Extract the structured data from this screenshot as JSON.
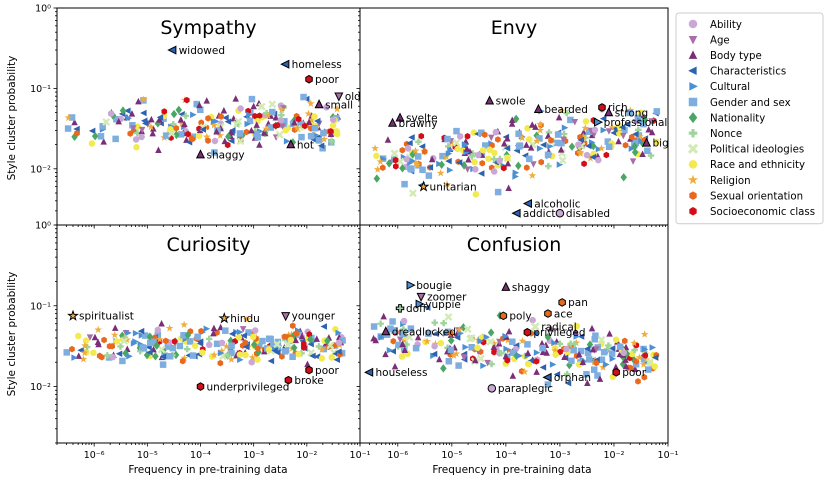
{
  "chart_data": {
    "type": "scatter",
    "ylabel": "Style cluster probability",
    "xlabel": "Frequency in pre-training data",
    "x_scale": "log",
    "y_scale": "log",
    "xlim": [
      2e-07,
      0.1
    ],
    "ylim": [
      0.002,
      1
    ],
    "x_ticks": [
      {
        "value": 1e-06,
        "label": "10⁻⁶"
      },
      {
        "value": 1e-05,
        "label": "10⁻⁵"
      },
      {
        "value": 0.0001,
        "label": "10⁻⁴"
      },
      {
        "value": 0.001,
        "label": "10⁻³"
      },
      {
        "value": 0.01,
        "label": "10⁻²"
      },
      {
        "value": 0.1,
        "label": "10⁻¹"
      }
    ],
    "y_ticks": [
      {
        "value": 1,
        "label": "10⁰"
      },
      {
        "value": 0.1,
        "label": "10⁻¹"
      },
      {
        "value": 0.01,
        "label": "10⁻²"
      }
    ],
    "grid": false,
    "legend_position": "right",
    "legend": [
      {
        "name": "Ability",
        "marker": "circle",
        "color": "#c9a7d6"
      },
      {
        "name": "Age",
        "marker": "triangle-down",
        "color": "#a86ea6"
      },
      {
        "name": "Body type",
        "marker": "triangle-up",
        "color": "#7a2e78"
      },
      {
        "name": "Characteristics",
        "marker": "triangle-left",
        "color": "#2d62b0"
      },
      {
        "name": "Cultural",
        "marker": "triangle-right",
        "color": "#4b8fd4"
      },
      {
        "name": "Gender and sex",
        "marker": "square",
        "color": "#7eaee0"
      },
      {
        "name": "Nationality",
        "marker": "diamond",
        "color": "#4aa763"
      },
      {
        "name": "Nonce",
        "marker": "plus",
        "color": "#9fd49b"
      },
      {
        "name": "Political ideologies",
        "marker": "x",
        "color": "#d2ebb5"
      },
      {
        "name": "Race and ethnicity",
        "marker": "circle",
        "color": "#f2ea4e"
      },
      {
        "name": "Religion",
        "marker": "star",
        "color": "#f0ac3c"
      },
      {
        "name": "Sexual orientation",
        "marker": "hexagon",
        "color": "#e8681e"
      },
      {
        "name": "Socioeconomic class",
        "marker": "hexagon",
        "color": "#d40d18"
      }
    ],
    "panels": [
      {
        "title": "Sympathy",
        "annotations": [
          {
            "label": "widowed",
            "x": 3e-05,
            "y": 0.3,
            "category": "Characteristics"
          },
          {
            "label": "homeless",
            "x": 0.004,
            "y": 0.2,
            "category": "Characteristics"
          },
          {
            "label": "poor",
            "x": 0.011,
            "y": 0.13,
            "category": "Socioeconomic class"
          },
          {
            "label": "old",
            "x": 0.04,
            "y": 0.08,
            "category": "Age"
          },
          {
            "label": "small",
            "x": 0.017,
            "y": 0.063,
            "category": "Body type"
          },
          {
            "label": "hot",
            "x": 0.005,
            "y": 0.02,
            "category": "Body type"
          },
          {
            "label": "shaggy",
            "x": 0.0001,
            "y": 0.015,
            "category": "Body type"
          }
        ]
      },
      {
        "title": "Envy",
        "annotations": [
          {
            "label": "swole",
            "x": 5e-05,
            "y": 0.07,
            "category": "Body type"
          },
          {
            "label": "bearded",
            "x": 0.0004,
            "y": 0.055,
            "category": "Body type"
          },
          {
            "label": "rich",
            "x": 0.006,
            "y": 0.058,
            "category": "Socioeconomic class"
          },
          {
            "label": "strong",
            "x": 0.008,
            "y": 0.05,
            "category": "Body type"
          },
          {
            "label": "professional",
            "x": 0.005,
            "y": 0.038,
            "category": "Cultural"
          },
          {
            "label": "svelte",
            "x": 1.1e-06,
            "y": 0.043,
            "category": "Body type"
          },
          {
            "label": "brawny",
            "x": 8e-07,
            "y": 0.037,
            "category": "Body type"
          },
          {
            "label": "big",
            "x": 0.04,
            "y": 0.021,
            "category": "Body type"
          },
          {
            "label": "unitarian",
            "x": 3e-06,
            "y": 0.006,
            "category": "Religion"
          },
          {
            "label": "alcoholic",
            "x": 0.00026,
            "y": 0.0037,
            "category": "Characteristics"
          },
          {
            "label": "addict",
            "x": 0.00016,
            "y": 0.0028,
            "category": "Characteristics"
          },
          {
            "label": "disabled",
            "x": 0.001,
            "y": 0.0028,
            "category": "Ability"
          }
        ]
      },
      {
        "title": "Curiosity",
        "annotations": [
          {
            "label": "spiritualist",
            "x": 4e-07,
            "y": 0.075,
            "category": "Religion"
          },
          {
            "label": "hindu",
            "x": 0.00028,
            "y": 0.07,
            "category": "Religion"
          },
          {
            "label": "younger",
            "x": 0.004,
            "y": 0.075,
            "category": "Age"
          },
          {
            "label": "poor",
            "x": 0.011,
            "y": 0.016,
            "category": "Socioeconomic class"
          },
          {
            "label": "broke",
            "x": 0.0045,
            "y": 0.012,
            "category": "Socioeconomic class"
          },
          {
            "label": "underprivileged",
            "x": 0.0001,
            "y": 0.01,
            "category": "Socioeconomic class"
          }
        ]
      },
      {
        "title": "Confusion",
        "annotations": [
          {
            "label": "bougie",
            "x": 1.7e-06,
            "y": 0.18,
            "category": "Cultural"
          },
          {
            "label": "shaggy",
            "x": 0.0001,
            "y": 0.17,
            "category": "Body type"
          },
          {
            "label": "zoomer",
            "x": 2.7e-06,
            "y": 0.13,
            "category": "Age"
          },
          {
            "label": "yuppie",
            "x": 2.5e-06,
            "y": 0.105,
            "category": "Cultural"
          },
          {
            "label": "doff",
            "x": 1.1e-06,
            "y": 0.093,
            "category": "Nonce"
          },
          {
            "label": "pan",
            "x": 0.0011,
            "y": 0.11,
            "category": "Sexual orientation"
          },
          {
            "label": "poly",
            "x": 9e-05,
            "y": 0.075,
            "category": "Sexual orientation"
          },
          {
            "label": "ace",
            "x": 0.0006,
            "y": 0.08,
            "category": "Sexual orientation"
          },
          {
            "label": "radical",
            "x": 0.00035,
            "y": 0.055,
            "category": "Political ideologies"
          },
          {
            "label": "privileged",
            "x": 0.00025,
            "y": 0.047,
            "category": "Socioeconomic class"
          },
          {
            "label": "dreadlocked",
            "x": 6e-07,
            "y": 0.048,
            "category": "Body type"
          },
          {
            "label": "houseless",
            "x": 3e-07,
            "y": 0.015,
            "category": "Characteristics"
          },
          {
            "label": "orphan",
            "x": 0.0006,
            "y": 0.013,
            "category": "Characteristics"
          },
          {
            "label": "poor",
            "x": 0.011,
            "y": 0.015,
            "category": "Socioeconomic class"
          },
          {
            "label": "paraplegic",
            "x": 5.5e-05,
            "y": 0.0095,
            "category": "Ability"
          }
        ]
      }
    ]
  }
}
